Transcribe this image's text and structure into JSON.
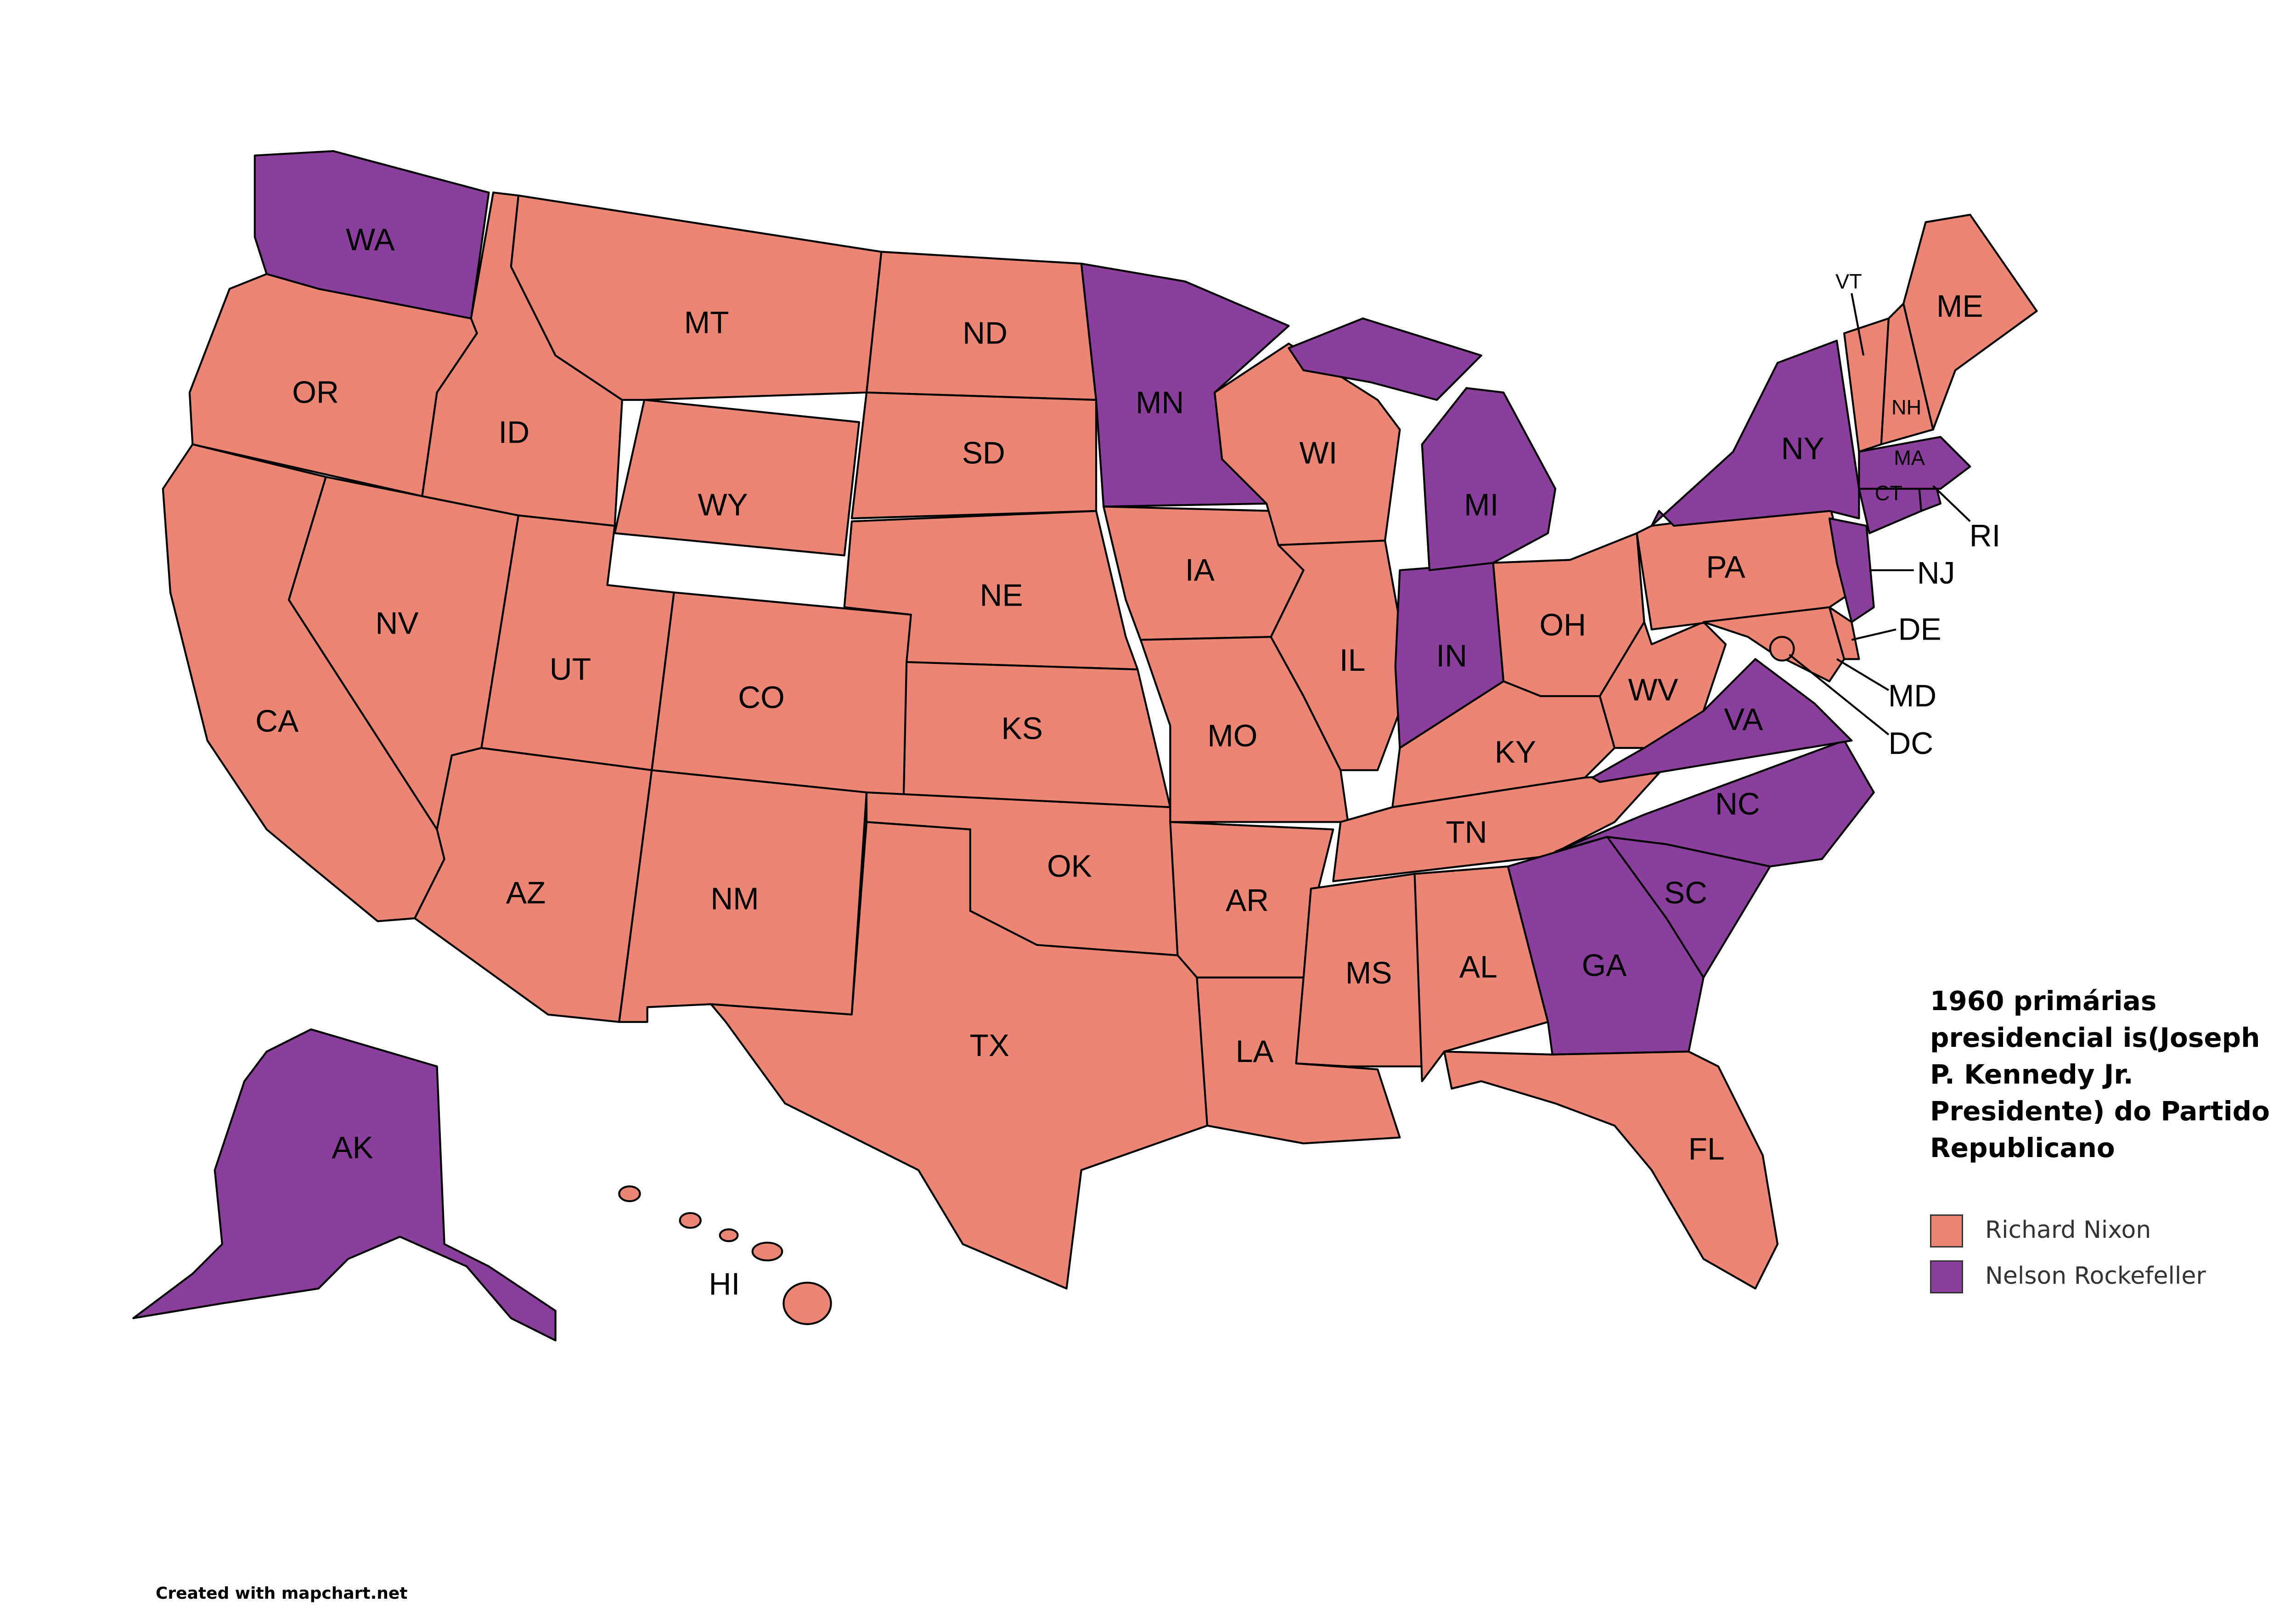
{
  "title": "1960 primárias presidencial is(Joseph P. Kennedy Jr. Presidente) do Partido Republicano",
  "credit": "Created with mapchart.net",
  "legend": [
    {
      "name": "Richard Nixon",
      "color": "#ea8673",
      "states": [
        "OR",
        "CA",
        "NV",
        "ID",
        "MT",
        "WY",
        "UT",
        "AZ",
        "CO",
        "NM",
        "ND",
        "SD",
        "NE",
        "KS",
        "OK",
        "TX",
        "IA",
        "MO",
        "AR",
        "LA",
        "WI",
        "IL",
        "OH",
        "KY",
        "TN",
        "MS",
        "AL",
        "FL",
        "WV",
        "PA",
        "MD",
        "DE",
        "DC",
        "VT",
        "NH",
        "ME",
        "HI"
      ]
    },
    {
      "name": "Nelson Rockefeller",
      "color": "#893f9b",
      "states": [
        "WA",
        "MN",
        "MI",
        "IN",
        "NY",
        "MA",
        "CT",
        "RI",
        "NJ",
        "VA",
        "NC",
        "SC",
        "GA",
        "AK"
      ]
    }
  ]
}
